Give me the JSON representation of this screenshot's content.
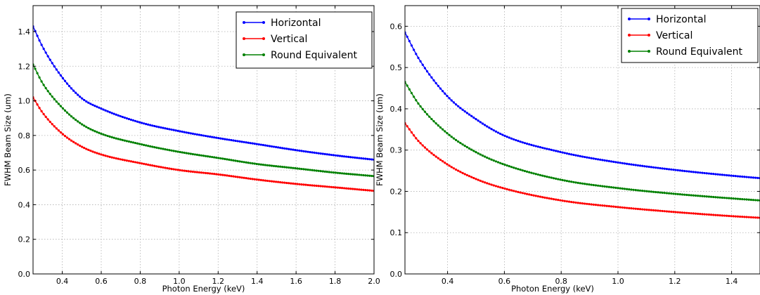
{
  "chart_data": [
    {
      "type": "line",
      "title": "",
      "xlabel": "Photon Energy (keV)",
      "ylabel": "FWHM Beam Size (um)",
      "xlim": [
        0.25,
        2.0
      ],
      "ylim": [
        0.0,
        1.55
      ],
      "xticks": [
        0.4,
        0.6,
        0.8,
        1.0,
        1.2,
        1.4,
        1.6,
        1.8,
        2.0
      ],
      "xtick_labels": [
        "0.4",
        "0.6",
        "0.8",
        "1.0",
        "1.2",
        "1.4",
        "1.6",
        "1.8",
        "2.0"
      ],
      "yticks": [
        0.0,
        0.2,
        0.4,
        0.6,
        0.8,
        1.0,
        1.2,
        1.4
      ],
      "ytick_labels": [
        "0.0",
        "0.2",
        "0.4",
        "0.6",
        "0.8",
        "1.0",
        "1.2",
        "1.4"
      ],
      "grid": true,
      "legend_position": "top-right",
      "x": [
        0.25,
        0.3,
        0.4,
        0.5,
        0.6,
        0.8,
        1.0,
        1.2,
        1.4,
        1.6,
        1.8,
        2.0
      ],
      "series": [
        {
          "name": "Horizontal",
          "color": "#0000ff",
          "values": [
            1.43,
            1.31,
            1.135,
            1.015,
            0.955,
            0.875,
            0.825,
            0.785,
            0.75,
            0.715,
            0.685,
            0.66
          ]
        },
        {
          "name": "Vertical",
          "color": "#ff0000",
          "values": [
            1.02,
            0.93,
            0.81,
            0.735,
            0.69,
            0.64,
            0.6,
            0.575,
            0.545,
            0.52,
            0.5,
            0.48
          ]
        },
        {
          "name": "Round Equivalent",
          "color": "#008000",
          "values": [
            1.21,
            1.1,
            0.96,
            0.865,
            0.81,
            0.75,
            0.705,
            0.67,
            0.635,
            0.61,
            0.585,
            0.565
          ]
        }
      ]
    },
    {
      "type": "line",
      "title": "",
      "xlabel": "Photon Energy (keV)",
      "ylabel": "FWHM Beam Size (um)",
      "xlim": [
        0.25,
        1.5
      ],
      "ylim": [
        0.0,
        0.65
      ],
      "xticks": [
        0.4,
        0.6,
        0.8,
        1.0,
        1.2,
        1.4
      ],
      "xtick_labels": [
        "0.4",
        "0.6",
        "0.8",
        "1.0",
        "1.2",
        "1.4"
      ],
      "yticks": [
        0.0,
        0.1,
        0.2,
        0.3,
        0.4,
        0.5,
        0.6
      ],
      "ytick_labels": [
        "0.0",
        "0.1",
        "0.2",
        "0.3",
        "0.4",
        "0.5",
        "0.6"
      ],
      "grid": true,
      "legend_position": "top-right",
      "x": [
        0.25,
        0.3,
        0.4,
        0.5,
        0.6,
        0.8,
        1.0,
        1.2,
        1.4,
        1.5
      ],
      "series": [
        {
          "name": "Horizontal",
          "color": "#0000ff",
          "values": [
            0.585,
            0.52,
            0.43,
            0.375,
            0.335,
            0.295,
            0.27,
            0.252,
            0.238,
            0.232
          ]
        },
        {
          "name": "Vertical",
          "color": "#ff0000",
          "values": [
            0.365,
            0.32,
            0.265,
            0.23,
            0.207,
            0.178,
            0.162,
            0.15,
            0.14,
            0.136
          ]
        },
        {
          "name": "Round Equivalent",
          "color": "#008000",
          "values": [
            0.465,
            0.41,
            0.34,
            0.295,
            0.265,
            0.228,
            0.208,
            0.194,
            0.183,
            0.178
          ]
        }
      ]
    }
  ]
}
